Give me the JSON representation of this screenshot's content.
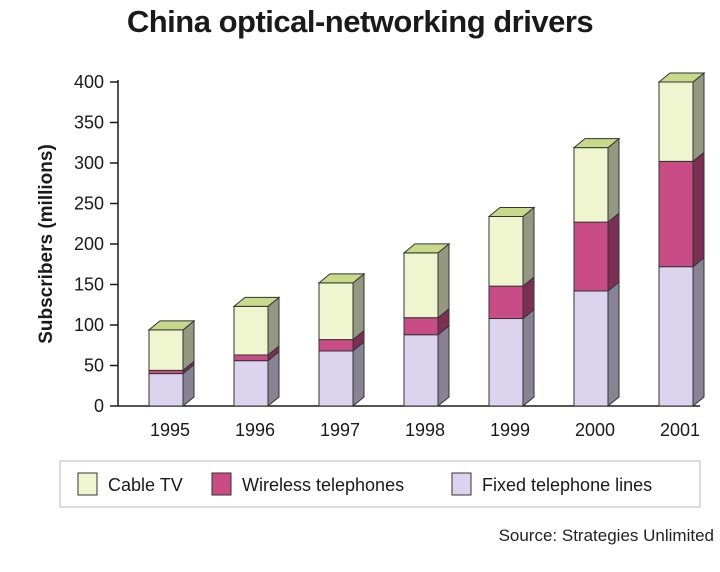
{
  "chart_data": {
    "type": "bar",
    "stacked": true,
    "title": "China optical-networking drivers",
    "ylabel": "Subscribers (millions)",
    "xlabel": "",
    "ylim": [
      0,
      400
    ],
    "yticks": [
      0,
      50,
      100,
      150,
      200,
      250,
      300,
      350,
      400
    ],
    "categories": [
      "1995",
      "1996",
      "1997",
      "1998",
      "1999",
      "2000",
      "2001"
    ],
    "series": [
      {
        "name": "Fixed telephone lines",
        "color": "#dcd3ee",
        "values": [
          40,
          56,
          68,
          88,
          108,
          142,
          172
        ]
      },
      {
        "name": "Wireless telephones",
        "color": "#c94c86",
        "values": [
          4,
          7,
          14,
          21,
          40,
          85,
          130
        ]
      },
      {
        "name": "Cable TV",
        "color": "#eef5cf",
        "values": [
          50,
          60,
          70,
          80,
          86,
          92,
          98
        ]
      }
    ],
    "legend_order": [
      "Cable TV",
      "Wireless telephones",
      "Fixed telephone lines"
    ],
    "legend_position": "bottom",
    "grid": false,
    "source": "Source: Strategies Unlimited"
  }
}
